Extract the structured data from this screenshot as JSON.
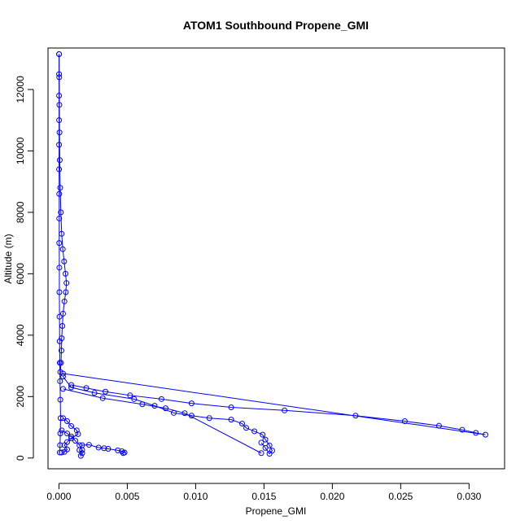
{
  "chart_data": {
    "type": "scatter",
    "title": "ATOM1 Southbound Propene_GMI",
    "xlabel": "Propene_GMI",
    "ylabel": "Altitude (m)",
    "xlim": [
      -0.0008,
      0.0326
    ],
    "ylim": [
      -350,
      13350
    ],
    "xticks": [
      0.0,
      0.005,
      0.01,
      0.015,
      0.02,
      0.025,
      0.03
    ],
    "xtick_labels": [
      "0.000",
      "0.005",
      "0.010",
      "0.015",
      "0.020",
      "0.025",
      "0.030"
    ],
    "yticks": [
      0,
      2000,
      4000,
      6000,
      8000,
      10000,
      12000
    ],
    "ytick_labels": [
      "0",
      "2000",
      "4000",
      "6000",
      "8000",
      "10000",
      "12000"
    ],
    "grid": false,
    "legend": "none",
    "color": "#0000ff",
    "marker": "open-circle",
    "line": true,
    "series": [
      {
        "values": [
          [
            6e-05,
            180
          ],
          [
            8e-05,
            420
          ],
          [
            0.0001,
            800
          ],
          [
            0.00012,
            1300
          ],
          [
            0.0001,
            1900
          ],
          [
            8e-05,
            2500
          ],
          [
            6e-05,
            3100
          ],
          [
            5e-05,
            3800
          ],
          [
            4e-05,
            4600
          ],
          [
            3e-05,
            5400
          ],
          [
            3e-05,
            6200
          ],
          [
            2e-05,
            7000
          ],
          [
            2e-05,
            7800
          ],
          [
            2e-05,
            8600
          ],
          [
            1e-05,
            9400
          ],
          [
            1e-05,
            10200
          ],
          [
            1e-05,
            11000
          ],
          [
            1e-05,
            11800
          ],
          [
            1e-05,
            12500
          ],
          [
            1e-05,
            13150
          ]
        ]
      },
      {
        "values": [
          [
            1e-05,
            13150
          ],
          [
            2e-05,
            12400
          ],
          [
            3e-05,
            11500
          ],
          [
            4e-05,
            10600
          ],
          [
            6e-05,
            9700
          ],
          [
            9e-05,
            8800
          ],
          [
            0.00014,
            8000
          ],
          [
            0.0002,
            7300
          ],
          [
            0.00028,
            6800
          ],
          [
            0.00038,
            6400
          ],
          [
            0.00048,
            6000
          ],
          [
            0.00055,
            5700
          ],
          [
            0.0005,
            5400
          ],
          [
            0.0004,
            5100
          ],
          [
            0.0003,
            4700
          ],
          [
            0.00025,
            4300
          ],
          [
            0.0002,
            3900
          ],
          [
            0.00018,
            3500
          ],
          [
            0.00015,
            3100
          ],
          [
            0.0001,
            2800
          ]
        ]
      },
      {
        "values": [
          [
            0.0003,
            2750
          ],
          [
            0.0312,
            760
          ],
          [
            0.0305,
            820
          ],
          [
            0.0295,
            920
          ],
          [
            0.0278,
            1050
          ],
          [
            0.0253,
            1200
          ],
          [
            0.0217,
            1380
          ],
          [
            0.0165,
            1550
          ],
          [
            0.0126,
            1650
          ],
          [
            0.0097,
            1780
          ],
          [
            0.0075,
            1920
          ],
          [
            0.0052,
            2040
          ],
          [
            0.0034,
            2160
          ],
          [
            0.002,
            2280
          ],
          [
            0.0009,
            2380
          ]
        ]
      },
      {
        "values": [
          [
            0.0003,
            2650
          ],
          [
            0.0009,
            2300
          ],
          [
            0.0026,
            2120
          ],
          [
            0.0055,
            1920
          ],
          [
            0.007,
            1700
          ],
          [
            0.0084,
            1470
          ],
          [
            0.0097,
            1380
          ],
          [
            0.011,
            1300
          ],
          [
            0.0126,
            1250
          ],
          [
            0.0134,
            1120
          ],
          [
            0.0137,
            980
          ],
          [
            0.0143,
            870
          ],
          [
            0.0149,
            760
          ],
          [
            0.0151,
            600
          ],
          [
            0.0154,
            410
          ],
          [
            0.0156,
            240
          ],
          [
            0.0154,
            140
          ],
          [
            0.0151,
            330
          ],
          [
            0.0148,
            500
          ]
        ]
      },
      {
        "values": [
          [
            0.0003,
            2250
          ],
          [
            0.0032,
            1950
          ],
          [
            0.0061,
            1750
          ],
          [
            0.0078,
            1620
          ],
          [
            0.0092,
            1460
          ],
          [
            0.0148,
            160
          ]
        ]
      },
      {
        "values": [
          [
            0.0002,
            900
          ],
          [
            0.0006,
            800
          ],
          [
            0.0009,
            700
          ],
          [
            0.0012,
            560
          ],
          [
            0.0015,
            420
          ],
          [
            0.0017,
            260
          ],
          [
            0.0017,
            160
          ],
          [
            0.0016,
            70
          ],
          [
            0.0015,
            260
          ],
          [
            0.0017,
            420
          ],
          [
            0.0022,
            430
          ],
          [
            0.0029,
            340
          ],
          [
            0.0033,
            320
          ],
          [
            0.0036,
            300
          ],
          [
            0.0043,
            250
          ],
          [
            0.0046,
            220
          ],
          [
            0.0048,
            180
          ],
          [
            0.0047,
            160
          ]
        ]
      },
      {
        "values": [
          [
            0.0003,
            1300
          ],
          [
            0.0006,
            1200
          ],
          [
            0.0009,
            1040
          ],
          [
            0.0013,
            900
          ],
          [
            0.0014,
            780
          ],
          [
            0.0009,
            640
          ],
          [
            0.0006,
            520
          ],
          [
            0.0004,
            420
          ],
          [
            0.0006,
            280
          ],
          [
            0.0004,
            200
          ],
          [
            0.0002,
            180
          ]
        ]
      }
    ]
  }
}
